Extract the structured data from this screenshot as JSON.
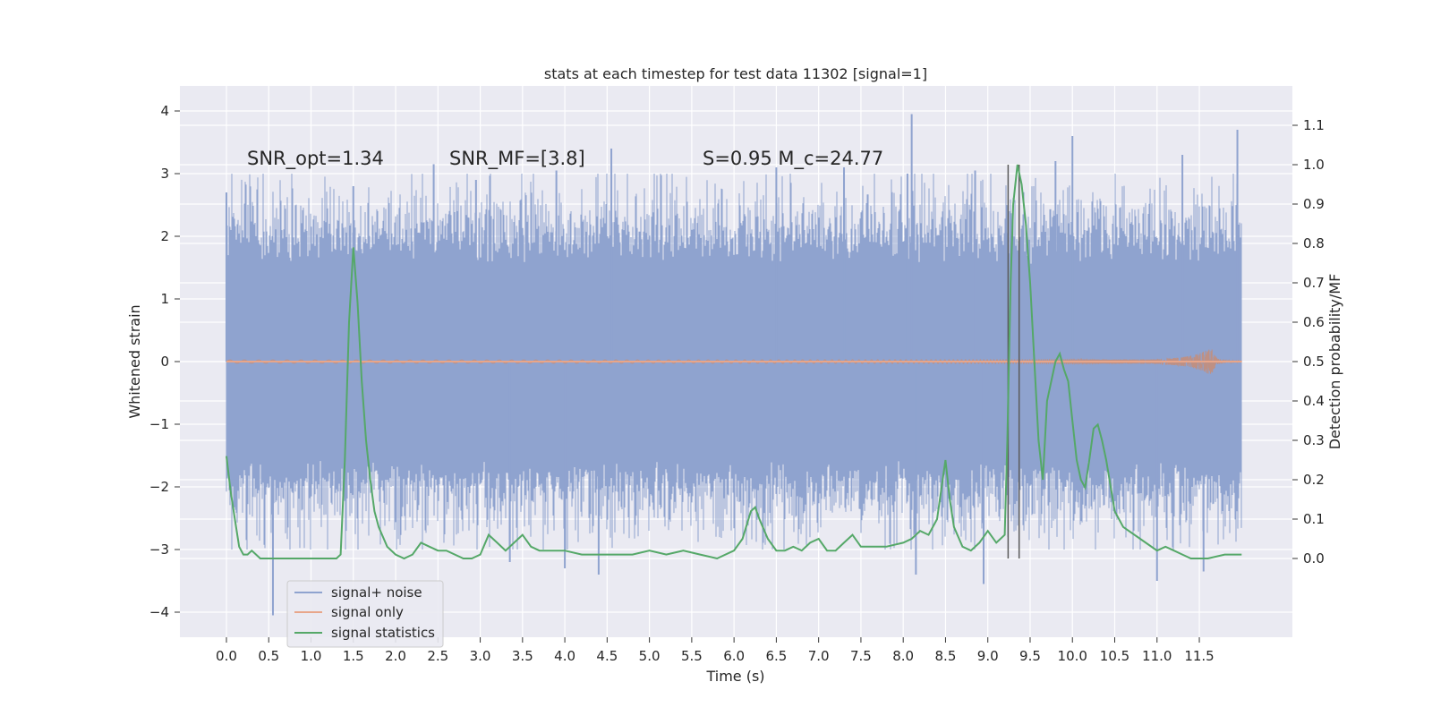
{
  "chart_data": {
    "type": "line",
    "title": "stats at each timestep for test data 11302 [signal=1]",
    "xlabel": "Time (s)",
    "ylabel": "Whitened strain",
    "ylabel_right": "Detection probability/MF",
    "xlim": [
      -0.55,
      12.6
    ],
    "ylim": [
      -4.4,
      4.4
    ],
    "ylim_right": [
      -0.2,
      1.2
    ],
    "x_ticks": [
      0.0,
      0.5,
      1.0,
      1.5,
      2.0,
      2.5,
      3.0,
      3.5,
      4.0,
      4.5,
      5.0,
      5.5,
      6.0,
      6.5,
      7.0,
      7.5,
      8.0,
      8.5,
      9.0,
      9.5,
      10.0,
      10.5,
      11.0,
      11.5
    ],
    "x_tick_labels": [
      "0.0",
      "0.5",
      "1.0",
      "1.5",
      "2.0",
      "2.5",
      "3.0",
      "3.5",
      "4.0",
      "4.5",
      "5.0",
      "5.5",
      "6.0",
      "6.5",
      "7.0",
      "7.5",
      "8.0",
      "8.5",
      "9.0",
      "9.5",
      "10.0",
      "10.5",
      "11.0",
      "11.5"
    ],
    "y_ticks": [
      -4,
      -3,
      -2,
      -1,
      0,
      1,
      2,
      3,
      4
    ],
    "y_tick_labels": [
      "−4",
      "−3",
      "−2",
      "−1",
      "0",
      "1",
      "2",
      "3",
      "4"
    ],
    "y_right_ticks": [
      0.0,
      0.1,
      0.2,
      0.3,
      0.4,
      0.5,
      0.6,
      0.7,
      0.8,
      0.9,
      1.0,
      1.1
    ],
    "y_right_tick_labels": [
      "0.0",
      "0.1",
      "0.2",
      "0.3",
      "0.4",
      "0.5",
      "0.6",
      "0.7",
      "0.8",
      "0.9",
      "1.0",
      "1.1"
    ],
    "grid": true,
    "legend_position": "lower-left",
    "annotations": [
      {
        "text": "SNR_opt=1.34",
        "x": 0.2,
        "y": 3.1
      },
      {
        "text": "SNR_MF=[3.8]",
        "x": 2.6,
        "y": 3.1
      },
      {
        "text": "S=0.95   M_c=24.77",
        "x": 5.6,
        "y": 3.1
      }
    ],
    "vertical_lines": {
      "x": [
        9.24,
        9.37
      ],
      "y_range_right": [
        0.0,
        1.0
      ]
    },
    "series": [
      {
        "name": "signal+ noise",
        "axis": "left",
        "color": "#8fa3cf",
        "kind": "noise",
        "x_range": [
          0.0,
          12.0
        ],
        "core_band": [
          -1.3,
          1.2
        ],
        "peaks": [
          {
            "x": 0.0,
            "y": 2.7
          },
          {
            "x": 0.55,
            "y": -4.05
          },
          {
            "x": 1.5,
            "y": 2.8
          },
          {
            "x": 2.45,
            "y": 3.15
          },
          {
            "x": 2.95,
            "y": 2.9
          },
          {
            "x": 3.35,
            "y": -3.2
          },
          {
            "x": 3.9,
            "y": 3.05
          },
          {
            "x": 4.0,
            "y": -3.3
          },
          {
            "x": 4.55,
            "y": 3.4
          },
          {
            "x": 4.4,
            "y": -3.4
          },
          {
            "x": 6.5,
            "y": 3.1
          },
          {
            "x": 7.3,
            "y": 3.1
          },
          {
            "x": 8.05,
            "y": 3.0
          },
          {
            "x": 8.1,
            "y": 3.95
          },
          {
            "x": 8.15,
            "y": -3.4
          },
          {
            "x": 8.85,
            "y": 3.05
          },
          {
            "x": 8.95,
            "y": -3.55
          },
          {
            "x": 9.8,
            "y": 3.2
          },
          {
            "x": 10.0,
            "y": 3.6
          },
          {
            "x": 11.0,
            "y": -3.5
          },
          {
            "x": 11.3,
            "y": 3.3
          },
          {
            "x": 11.55,
            "y": -3.35
          },
          {
            "x": 11.95,
            "y": 3.7
          }
        ]
      },
      {
        "name": "signal only",
        "axis": "left",
        "color": "#dd8452",
        "kind": "chirp",
        "x_range": [
          0.0,
          12.0
        ],
        "peak_time": 11.65,
        "max_amplitude": 0.3
      },
      {
        "name": "signal statistics",
        "axis": "right",
        "color": "#55a868",
        "x": [
          0.0,
          0.05,
          0.1,
          0.15,
          0.2,
          0.25,
          0.3,
          0.35,
          0.4,
          0.45,
          0.5,
          0.6,
          0.7,
          0.8,
          0.9,
          1.0,
          1.1,
          1.2,
          1.3,
          1.35,
          1.4,
          1.45,
          1.5,
          1.55,
          1.6,
          1.65,
          1.7,
          1.75,
          1.8,
          1.9,
          2.0,
          2.1,
          2.2,
          2.3,
          2.4,
          2.5,
          2.6,
          2.7,
          2.8,
          2.9,
          3.0,
          3.1,
          3.2,
          3.3,
          3.4,
          3.5,
          3.6,
          3.7,
          3.8,
          3.9,
          4.0,
          4.2,
          4.4,
          4.6,
          4.8,
          5.0,
          5.2,
          5.4,
          5.6,
          5.8,
          6.0,
          6.1,
          6.2,
          6.25,
          6.3,
          6.4,
          6.5,
          6.6,
          6.7,
          6.8,
          6.9,
          7.0,
          7.1,
          7.2,
          7.3,
          7.4,
          7.5,
          7.6,
          7.8,
          8.0,
          8.1,
          8.2,
          8.3,
          8.4,
          8.5,
          8.55,
          8.6,
          8.7,
          8.8,
          8.9,
          9.0,
          9.1,
          9.2,
          9.23,
          9.27,
          9.3,
          9.35,
          9.4,
          9.45,
          9.5,
          9.55,
          9.6,
          9.65,
          9.7,
          9.75,
          9.8,
          9.85,
          9.9,
          9.95,
          10.0,
          10.05,
          10.1,
          10.15,
          10.2,
          10.25,
          10.3,
          10.35,
          10.4,
          10.5,
          10.6,
          10.8,
          11.0,
          11.1,
          11.2,
          11.3,
          11.4,
          11.6,
          11.8,
          12.0
        ],
        "y": [
          0.26,
          0.17,
          0.1,
          0.03,
          0.01,
          0.01,
          0.02,
          0.01,
          0.0,
          0.0,
          0.0,
          0.0,
          0.0,
          0.0,
          0.0,
          0.0,
          0.0,
          0.0,
          0.0,
          0.01,
          0.25,
          0.6,
          0.79,
          0.65,
          0.45,
          0.3,
          0.2,
          0.12,
          0.08,
          0.03,
          0.01,
          0.0,
          0.01,
          0.04,
          0.03,
          0.02,
          0.02,
          0.01,
          0.0,
          0.0,
          0.01,
          0.06,
          0.04,
          0.02,
          0.04,
          0.06,
          0.03,
          0.02,
          0.02,
          0.02,
          0.02,
          0.01,
          0.01,
          0.01,
          0.01,
          0.02,
          0.01,
          0.02,
          0.01,
          0.0,
          0.02,
          0.05,
          0.12,
          0.13,
          0.1,
          0.05,
          0.02,
          0.02,
          0.03,
          0.02,
          0.04,
          0.05,
          0.02,
          0.02,
          0.04,
          0.06,
          0.03,
          0.03,
          0.03,
          0.04,
          0.05,
          0.07,
          0.06,
          0.1,
          0.25,
          0.15,
          0.08,
          0.03,
          0.02,
          0.04,
          0.07,
          0.04,
          0.06,
          0.3,
          0.7,
          0.9,
          1.0,
          0.95,
          0.85,
          0.7,
          0.5,
          0.3,
          0.2,
          0.4,
          0.45,
          0.5,
          0.52,
          0.48,
          0.45,
          0.35,
          0.25,
          0.2,
          0.18,
          0.25,
          0.33,
          0.34,
          0.3,
          0.25,
          0.12,
          0.08,
          0.05,
          0.02,
          0.03,
          0.02,
          0.01,
          0.0,
          0.0,
          0.01,
          0.01
        ]
      }
    ]
  }
}
